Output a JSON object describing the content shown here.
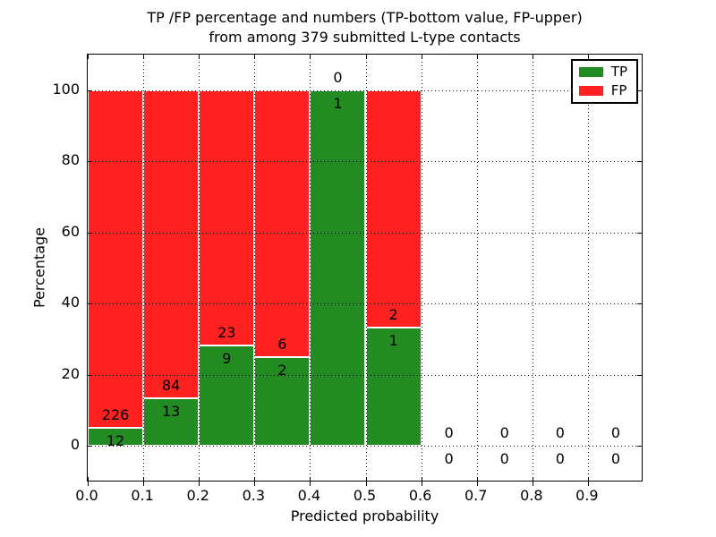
{
  "title": {
    "line1": "TP /FP percentage and numbers (TP-bottom value, FP-upper)",
    "line2": "from among 379 submitted L-type contacts"
  },
  "axes": {
    "xlabel": "Predicted probability",
    "ylabel": "Percentage",
    "xtick_labels": [
      "0.0",
      "0.1",
      "0.2",
      "0.3",
      "0.4",
      "0.5",
      "0.6",
      "0.7",
      "0.8",
      "0.9"
    ],
    "xtick_values": [
      0.0,
      0.1,
      0.2,
      0.3,
      0.4,
      0.5,
      0.6,
      0.7,
      0.8,
      0.9
    ],
    "ytick_labels": [
      "0",
      "20",
      "40",
      "60",
      "80",
      "100"
    ],
    "ytick_values": [
      0,
      20,
      40,
      60,
      80,
      100
    ]
  },
  "legend": {
    "position": "upper right",
    "items": [
      {
        "label": "TP",
        "color": "#228b22"
      },
      {
        "label": "FP",
        "color": "#ff2020"
      }
    ]
  },
  "colors": {
    "tp_green": "#228b22",
    "fp_red": "#ff2020",
    "bar_edge": "#ffffff",
    "grid": "#000000"
  },
  "chart_data": {
    "type": "bar",
    "stacked": true,
    "normalized_to_pct": 100,
    "title": "TP /FP percentage and numbers (TP-bottom value, FP-upper) from among 379 submitted L-type contacts",
    "xlabel": "Predicted probability",
    "ylabel": "Percentage",
    "xlim": [
      0.0,
      1.0
    ],
    "ylim": [
      -10,
      110
    ],
    "grid": "dotted",
    "legend_position": "upper right",
    "total_submitted": 379,
    "bin_width": 0.1,
    "series": [
      {
        "name": "TP",
        "color": "#228b22",
        "values": [
          12,
          13,
          9,
          2,
          1,
          1,
          0,
          0,
          0,
          0
        ]
      },
      {
        "name": "FP",
        "color": "#ff2020",
        "values": [
          226,
          84,
          23,
          6,
          0,
          2,
          0,
          0,
          0,
          0
        ]
      }
    ],
    "bins": [
      {
        "x0": 0.0,
        "x1": 0.1,
        "tp": 12,
        "fp": 226,
        "tp_pct": 5.0
      },
      {
        "x0": 0.1,
        "x1": 0.2,
        "tp": 13,
        "fp": 84,
        "tp_pct": 13.4
      },
      {
        "x0": 0.2,
        "x1": 0.3,
        "tp": 9,
        "fp": 23,
        "tp_pct": 28.1
      },
      {
        "x0": 0.3,
        "x1": 0.4,
        "tp": 2,
        "fp": 6,
        "tp_pct": 25.0
      },
      {
        "x0": 0.4,
        "x1": 0.5,
        "tp": 1,
        "fp": 0,
        "tp_pct": 100.0
      },
      {
        "x0": 0.5,
        "x1": 0.6,
        "tp": 1,
        "fp": 2,
        "tp_pct": 33.3
      },
      {
        "x0": 0.6,
        "x1": 0.7,
        "tp": 0,
        "fp": 0,
        "tp_pct": 0
      },
      {
        "x0": 0.7,
        "x1": 0.8,
        "tp": 0,
        "fp": 0,
        "tp_pct": 0
      },
      {
        "x0": 0.8,
        "x1": 0.9,
        "tp": 0,
        "fp": 0,
        "tp_pct": 0
      },
      {
        "x0": 0.9,
        "x1": 1.0,
        "tp": 0,
        "fp": 0,
        "tp_pct": 0
      }
    ]
  }
}
